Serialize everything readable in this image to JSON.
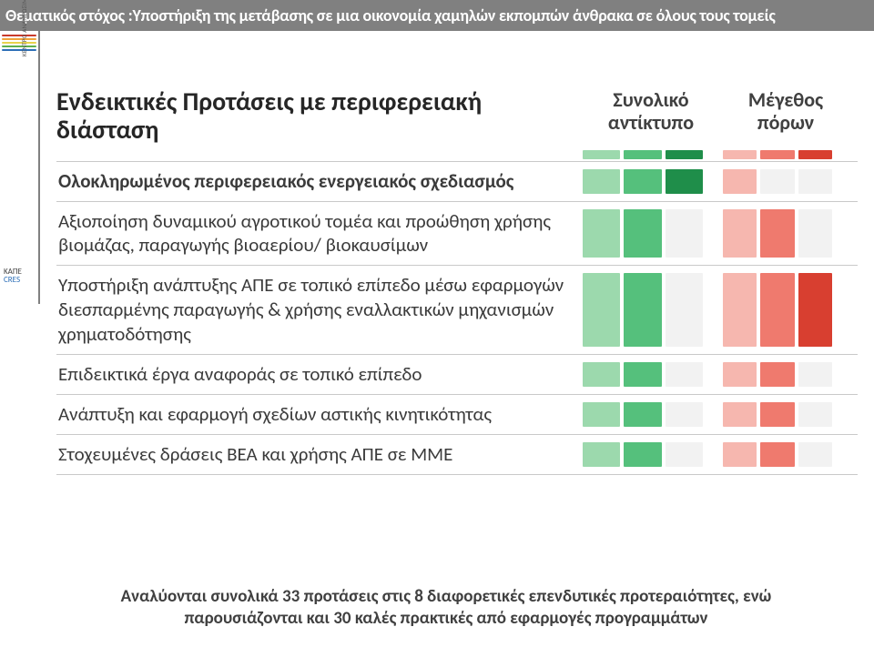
{
  "banner": {
    "text": "Θεματικός στόχος :Υποστήριξη της μετάβασης σε μια οικονομία χαμηλών εκπομπών άνθρακα σε όλους τους τομείς",
    "bg": "#808080",
    "fg": "#ffffff"
  },
  "logo": {
    "stripes": [
      "#c93a2c",
      "#f0a23a",
      "#e9d24a",
      "#5fb04a",
      "#2d6fb7"
    ],
    "topLabel": "ΚΕΝΤΡΟ ΑΝΑΝΕΩΣΙΜΩΝ ΠΗΓΩΝ ΚΑΙ ΕΞΟΙΚΟΝΟΜΗΣΗΣ ΕΝΕΡΓΕΙΑΣ",
    "mark1": "ΚΑΠΕ",
    "mark2": "CRES"
  },
  "header": {
    "title": "Ενδεικτικές Προτάσεις με    περιφερειακή διάσταση",
    "impact": "Συνολικό αντίκτυπο",
    "size": "Μέγεθος πόρων"
  },
  "scale": {
    "levels": 3,
    "impactColors": [
      "#9cd9ad",
      "#55c07c",
      "#1f8e4a"
    ],
    "sizeColors": [
      "#f6b7af",
      "#ef7a6e",
      "#d83f30"
    ],
    "cellOff": "#f2f2f2"
  },
  "rows": [
    {
      "label": "Ολοκληρωμένος περιφερειακός ενεργειακός σχεδιασμός",
      "bold": true,
      "impact": 3,
      "size": 1
    },
    {
      "label": "Αξιοποίηση δυναμικού αγροτικού τομέα και προώθηση χρήσης βιομάζας, παραγωγής βιοαερίου/ βιοκαυσίμων",
      "bold": false,
      "impact": 2,
      "size": 2
    },
    {
      "label": "Υποστήριξη ανάπτυξης ΑΠΕ σε τοπικό επίπεδο μέσω εφαρμογών διεσπαρμένης παραγωγής & χρήσης εναλλακτικών μηχανισμών χρηματοδότησης",
      "bold": false,
      "impact": 2,
      "size": 3
    },
    {
      "label": "Επιδεικτικά έργα αναφοράς σε τοπικό επίπεδο",
      "bold": false,
      "impact": 2,
      "size": 2
    },
    {
      "label": "Ανάπτυξη και εφαρμογή σχεδίων αστικής κινητικότητας",
      "bold": false,
      "impact": 2,
      "size": 2
    },
    {
      "label": "Στοχευμένες δράσεις ΒΕΑ και χρήσης ΑΠΕ σε ΜΜΕ",
      "bold": false,
      "impact": 2,
      "size": 2
    }
  ],
  "footer": {
    "line1": "Αναλύονται συνολικά 33 προτάσεις στις 8 διαφορετικές επενδυτικές προτεραιότητες, ενώ",
    "line2": "παρουσιάζονται και 30 καλές πρακτικές από εφαρμογές προγραμμάτων"
  }
}
